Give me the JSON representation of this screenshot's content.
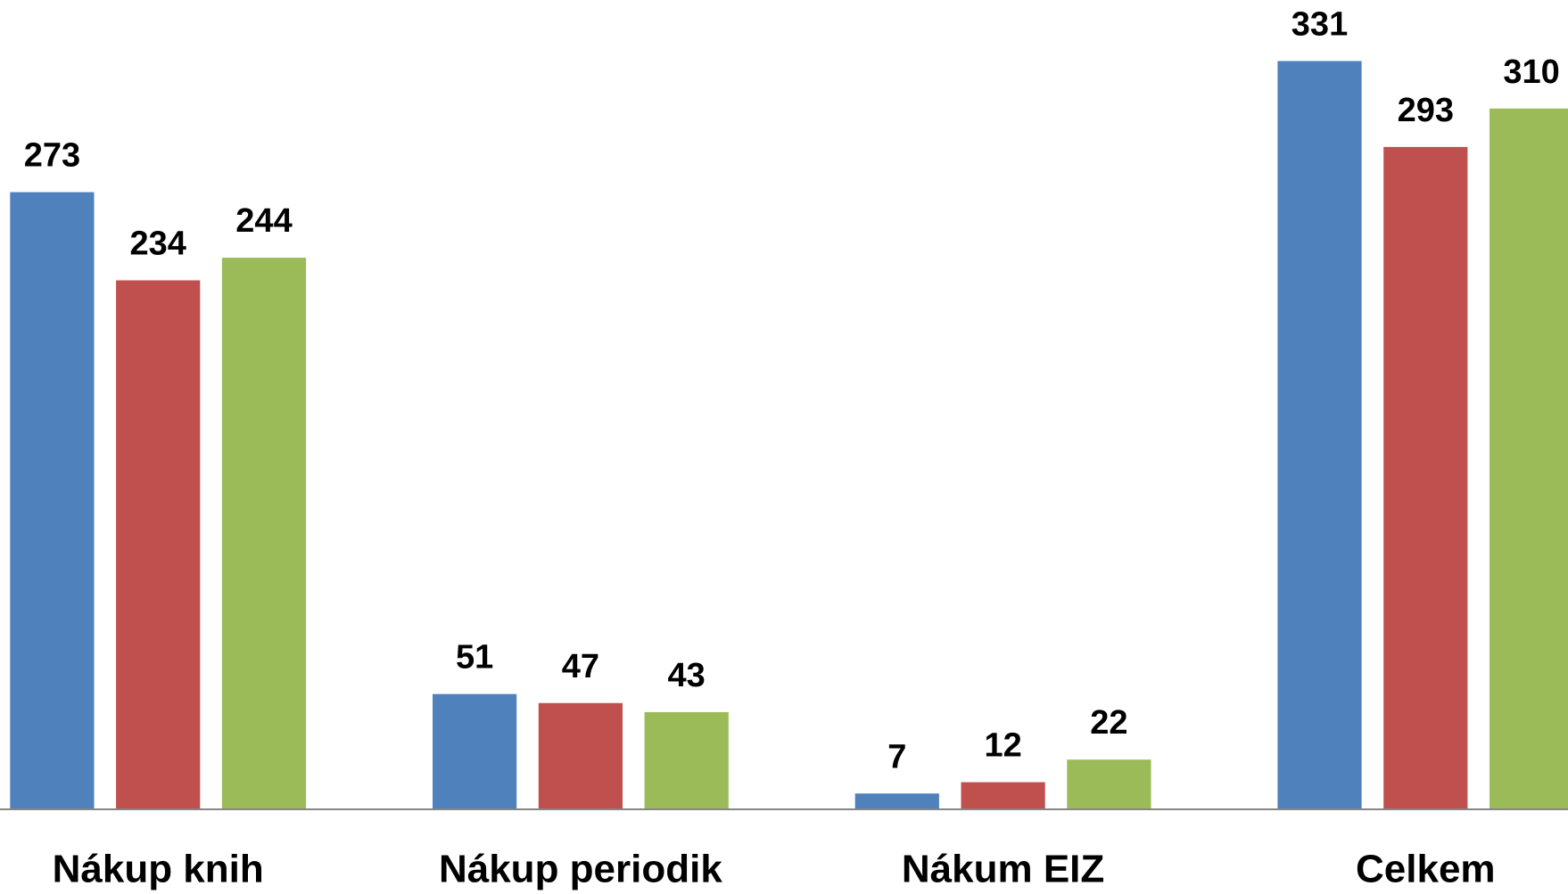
{
  "chart_data": {
    "type": "bar",
    "categories": [
      "Nákup knih",
      "Nákup periodik",
      "Nákum EIZ",
      "Celkem"
    ],
    "series": [
      {
        "color": "#4f81bd",
        "values": [
          273,
          51,
          7,
          331
        ]
      },
      {
        "color": "#c0504d",
        "values": [
          234,
          47,
          12,
          293
        ]
      },
      {
        "color": "#9bbb59",
        "values": [
          244,
          43,
          22,
          310
        ]
      }
    ],
    "ylim": [
      0,
      358
    ]
  }
}
